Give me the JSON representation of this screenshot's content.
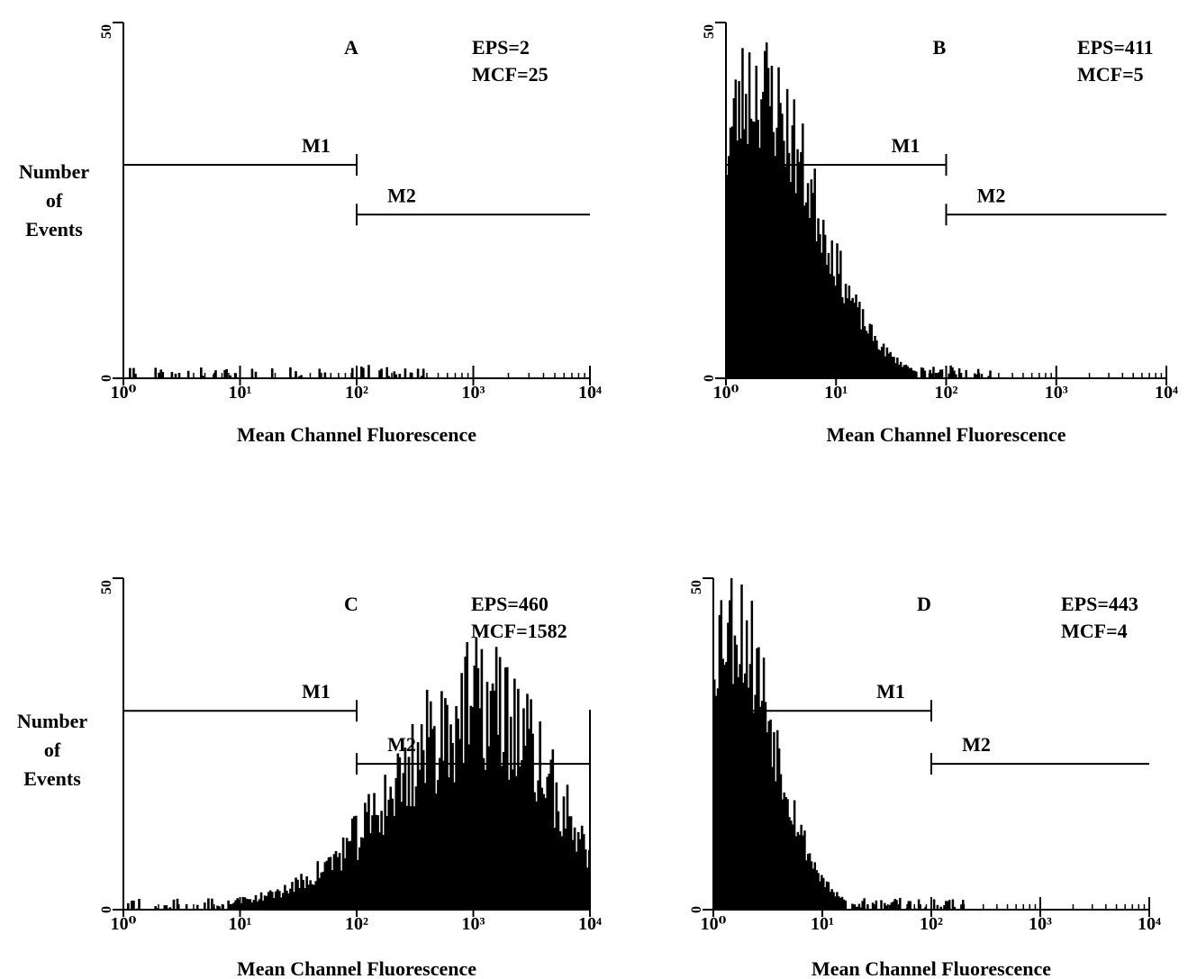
{
  "figure": {
    "ylabel_lines": [
      "Number",
      "of",
      "Events"
    ]
  },
  "chart_data": [
    {
      "type": "bar",
      "panel": "A",
      "title": "A",
      "stats": [
        "EPS=2",
        "MCF=25"
      ],
      "xlabel": "Mean Channel Fluorescence",
      "ylabel": "Number of Events",
      "x_scale": "log",
      "xlim": [
        1,
        10000
      ],
      "ylim": [
        0,
        50
      ],
      "xtick_labels": [
        "10⁰",
        "10¹",
        "10²",
        "10³",
        "10⁴"
      ],
      "ytick_labels": [
        "0",
        "50"
      ],
      "markers": [
        {
          "name": "M1",
          "x_range": [
            1,
            100
          ],
          "y": 30
        },
        {
          "name": "M2",
          "x_range": [
            100,
            10000
          ],
          "y": 23
        }
      ],
      "histogram": {
        "shape": "sparse",
        "seed": 11,
        "peak_log_x": 1.0,
        "spread": 1.0,
        "peak_y": 1.2,
        "noise": 0.9,
        "x_end_log": 2.6
      }
    },
    {
      "type": "bar",
      "panel": "B",
      "title": "B",
      "stats": [
        "EPS=411",
        "MCF=5"
      ],
      "xlabel": "Mean Channel Fluorescence",
      "ylabel": "Number of Events",
      "x_scale": "log",
      "xlim": [
        1,
        10000
      ],
      "ylim": [
        0,
        50
      ],
      "xtick_labels": [
        "10⁰",
        "10¹",
        "10²",
        "10³",
        "10⁴"
      ],
      "ytick_labels": [
        "0",
        "50"
      ],
      "markers": [
        {
          "name": "M1",
          "x_range": [
            1,
            100
          ],
          "y": 30
        },
        {
          "name": "M2",
          "x_range": [
            100,
            10000
          ],
          "y": 23
        }
      ],
      "histogram": {
        "shape": "skewed",
        "seed": 23,
        "peak_log_x": 0.25,
        "spread_left": 0.35,
        "spread_right": 0.55,
        "peak_y": 41,
        "noise": 0.14,
        "x_end_log": 2.4
      }
    },
    {
      "type": "bar",
      "panel": "C",
      "title": "C",
      "stats": [
        "EPS=460",
        "MCF=1582"
      ],
      "xlabel": "Mean Channel Fluorescence",
      "ylabel": "Number of Events",
      "x_scale": "log",
      "xlim": [
        1,
        10000
      ],
      "ylim": [
        0,
        50
      ],
      "xtick_labels": [
        "10⁰",
        "10¹",
        "10²",
        "10³",
        "10⁴"
      ],
      "ytick_labels": [
        "0",
        "50"
      ],
      "markers": [
        {
          "name": "M1",
          "x_range": [
            1,
            100
          ],
          "y": 30
        },
        {
          "name": "M2",
          "x_range": [
            100,
            10000
          ],
          "y": 22
        }
      ],
      "histogram": {
        "shape": "skewed",
        "seed": 37,
        "peak_log_x": 3.1,
        "spread_left": 0.75,
        "spread_right": 0.55,
        "peak_y": 30,
        "noise": 0.22,
        "baseline": 0.8,
        "x_end_log": 4.0
      }
    },
    {
      "type": "bar",
      "panel": "D",
      "title": "D",
      "stats": [
        "EPS=443",
        "MCF=4"
      ],
      "xlabel": "Mean Channel Fluorescence",
      "ylabel": "Number of Events",
      "x_scale": "log",
      "xlim": [
        1,
        10000
      ],
      "ylim": [
        0,
        50
      ],
      "xtick_labels": [
        "10⁰",
        "10¹",
        "10²",
        "10³",
        "10⁴"
      ],
      "ytick_labels": [
        "0",
        "50"
      ],
      "markers": [
        {
          "name": "M1",
          "x_range": [
            1,
            100
          ],
          "y": 30
        },
        {
          "name": "M2",
          "x_range": [
            100,
            10000
          ],
          "y": 22
        }
      ],
      "histogram": {
        "shape": "skewed",
        "seed": 53,
        "peak_log_x": 0.15,
        "spread_left": 0.3,
        "spread_right": 0.4,
        "peak_y": 44,
        "noise": 0.15,
        "x_end_log": 2.3
      }
    }
  ]
}
